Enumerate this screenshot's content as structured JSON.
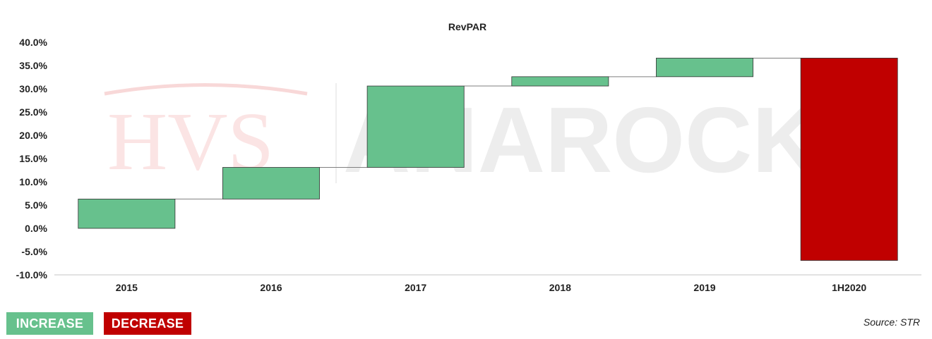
{
  "colors": {
    "increase": "#67c18d",
    "decrease": "#c00000",
    "connector": "#7f7f7f",
    "axis": "#d9d9d9"
  },
  "chart_data": {
    "type": "bar",
    "subtype": "waterfall",
    "title": "RevPAR",
    "xlabel": "",
    "ylabel": "",
    "ylim": [
      -10,
      40
    ],
    "ytick_step": 5,
    "ytick_labels": [
      "-10.0%",
      "-5.0%",
      "0.0%",
      "5.0%",
      "10.0%",
      "15.0%",
      "20.0%",
      "25.0%",
      "30.0%",
      "35.0%",
      "40.0%"
    ],
    "categories": [
      "2015",
      "2016",
      "2017",
      "2018",
      "2019",
      "1H2020"
    ],
    "bars": [
      {
        "category": "2015",
        "start": 0.0,
        "end": 6.3,
        "kind": "increase"
      },
      {
        "category": "2016",
        "start": 6.3,
        "end": 13.1,
        "kind": "increase"
      },
      {
        "category": "2017",
        "start": 13.1,
        "end": 30.6,
        "kind": "increase"
      },
      {
        "category": "2018",
        "start": 30.6,
        "end": 32.6,
        "kind": "increase"
      },
      {
        "category": "2019",
        "start": 32.6,
        "end": 36.6,
        "kind": "increase"
      },
      {
        "category": "1H2020",
        "start": 36.6,
        "end": -6.9,
        "kind": "decrease"
      }
    ],
    "grid": false,
    "legend_position": "bottom-left"
  },
  "legend": {
    "increase_label": "INCREASE",
    "decrease_label": "DECREASE"
  },
  "source": "Source: STR"
}
